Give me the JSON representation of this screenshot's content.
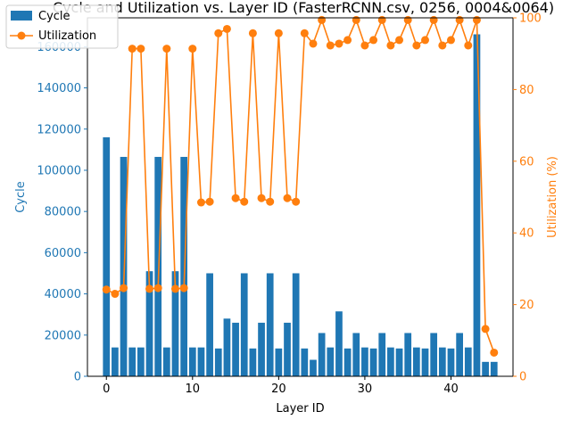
{
  "chart_data": {
    "type": "bar+line",
    "title": "Cycle and Utilization vs. Layer ID (FasterRCNN.csv, 0256, 0004&0064)",
    "xlabel": "Layer ID",
    "ylabel_left": "Cycle",
    "ylabel_right": "Utilization (%)",
    "x_ticks": [
      0,
      10,
      20,
      30,
      40
    ],
    "y_left_ticks": [
      0,
      20000,
      40000,
      60000,
      80000,
      100000,
      120000,
      140000,
      160000
    ],
    "y_right_ticks": [
      0,
      20,
      40,
      60,
      80,
      100
    ],
    "xlim": [
      -2.2,
      47.2
    ],
    "ylim_left": [
      0,
      174000
    ],
    "ylim_right": [
      0,
      100
    ],
    "legend_position": "upper-left",
    "colors": {
      "cycle": "#1f77b4",
      "utilization": "#ff7f0e"
    },
    "x": [
      0,
      1,
      2,
      3,
      4,
      5,
      6,
      7,
      8,
      9,
      10,
      11,
      12,
      13,
      14,
      15,
      16,
      17,
      18,
      19,
      20,
      21,
      22,
      23,
      24,
      25,
      26,
      27,
      28,
      29,
      30,
      31,
      32,
      33,
      34,
      35,
      36,
      37,
      38,
      39,
      40,
      41,
      42,
      43,
      44,
      45
    ],
    "series": [
      {
        "name": "Cycle",
        "type": "bar",
        "axis": "left",
        "values": [
          116000,
          14000,
          106500,
          14000,
          14000,
          51000,
          106500,
          14000,
          51000,
          106500,
          14000,
          14000,
          50000,
          13500,
          28000,
          26000,
          50000,
          13500,
          26000,
          50000,
          13500,
          26000,
          50000,
          13500,
          8000,
          21000,
          14000,
          31500,
          13500,
          21000,
          14000,
          13500,
          21000,
          14000,
          13500,
          21000,
          14000,
          13500,
          21000,
          14000,
          13500,
          21000,
          14000,
          166000,
          7000,
          7000
        ]
      },
      {
        "name": "Utilization",
        "type": "line",
        "axis": "right",
        "values": [
          24.2,
          23.0,
          24.6,
          91.4,
          91.4,
          24.4,
          24.6,
          91.4,
          24.4,
          24.6,
          91.4,
          48.5,
          48.7,
          95.7,
          96.9,
          49.7,
          48.7,
          95.7,
          49.7,
          48.7,
          95.7,
          49.7,
          48.7,
          95.7,
          92.8,
          99.4,
          92.3,
          92.8,
          93.8,
          99.4,
          92.3,
          93.8,
          99.4,
          92.3,
          93.8,
          99.4,
          92.3,
          93.8,
          99.4,
          92.3,
          93.8,
          99.4,
          92.3,
          99.4,
          13.2,
          6.6
        ]
      }
    ]
  }
}
